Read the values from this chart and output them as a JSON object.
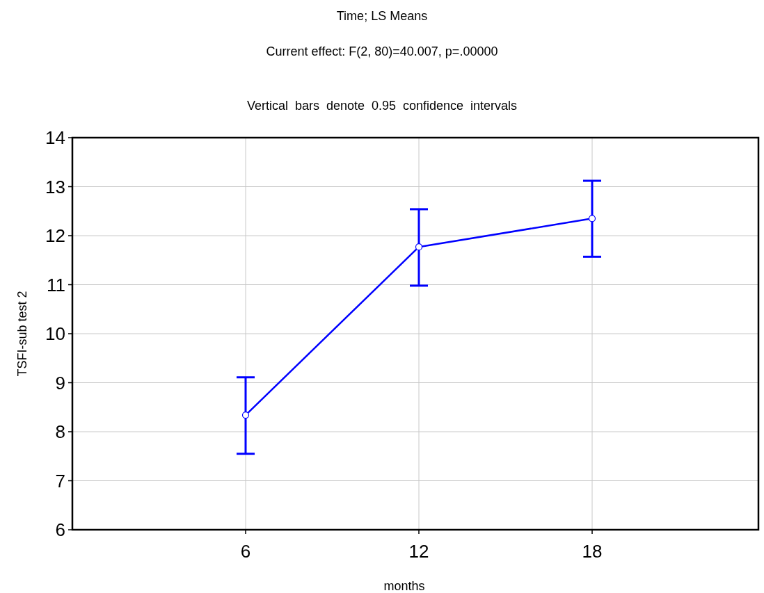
{
  "chart_data": {
    "type": "line",
    "title": "Time; LS Means",
    "subtitle": "Current effect: F(2, 80)=40.007, p=.00000",
    "annotations": [
      "Vertical  bars  denote  0.95  confidence  intervals"
    ],
    "xlabel": "months",
    "ylabel": "TSFI-sub test 2",
    "categories": [
      "6",
      "12",
      "18"
    ],
    "series": [
      {
        "color": "#0000ff",
        "values": [
          8.34,
          11.77,
          12.35
        ],
        "errors": [
          [
            7.55,
            9.11
          ],
          [
            10.98,
            12.54
          ],
          [
            11.57,
            13.12
          ]
        ]
      }
    ],
    "ylim": [
      6,
      14
    ],
    "yticks": [
      6,
      7,
      8,
      9,
      10,
      11,
      12,
      13,
      14
    ],
    "grid": true,
    "marker": "circle",
    "line_style": "solid"
  }
}
